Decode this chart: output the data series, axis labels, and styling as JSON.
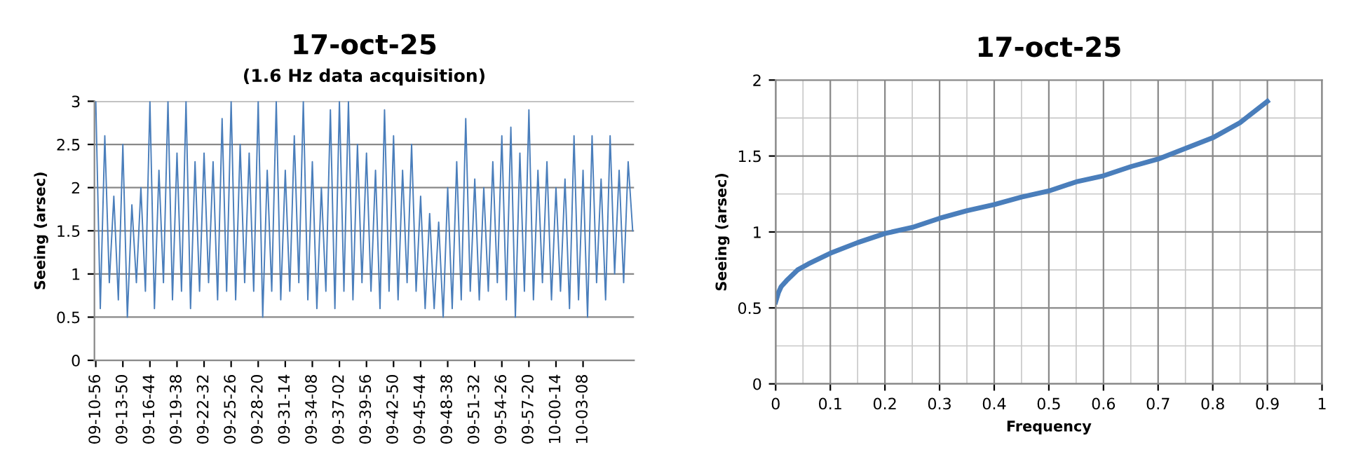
{
  "chart_data": [
    {
      "type": "line",
      "title": "17-oct-25",
      "subtitle": "(1.6 Hz data acquisition)",
      "ylabel": "Seeing (arsec)",
      "color": "#4a7ebb",
      "categories": [
        "09-10-56",
        null,
        null,
        null,
        null,
        null,
        "09-13-50",
        null,
        null,
        null,
        null,
        null,
        "09-16-44",
        null,
        null,
        null,
        null,
        null,
        "09-19-38",
        null,
        null,
        null,
        null,
        null,
        "09-22-32",
        null,
        null,
        null,
        null,
        null,
        "09-25-26",
        null,
        null,
        null,
        null,
        null,
        "09-28-20",
        null,
        null,
        null,
        null,
        null,
        "09-31-14",
        null,
        null,
        null,
        null,
        null,
        "09-34-08",
        null,
        null,
        null,
        null,
        null,
        "09-37-02",
        null,
        null,
        null,
        null,
        null,
        "09-39-56",
        null,
        null,
        null,
        null,
        null,
        "09-42-50",
        null,
        null,
        null,
        null,
        null,
        "09-45-44",
        null,
        null,
        null,
        null,
        null,
        "09-48-38",
        null,
        null,
        null,
        null,
        null,
        "09-51-32",
        null,
        null,
        null,
        null,
        null,
        "09-54-26",
        null,
        null,
        null,
        null,
        null,
        "09-57-20",
        null,
        null,
        null,
        null,
        null,
        "10-00-14",
        null,
        null,
        null,
        null,
        null,
        "10-03-08",
        null,
        null,
        null,
        null,
        null,
        null,
        null,
        null,
        null,
        null,
        null
      ],
      "values": [
        3.0,
        0.6,
        2.6,
        0.9,
        1.9,
        0.7,
        2.5,
        0.5,
        1.8,
        0.9,
        2.0,
        0.8,
        3.0,
        0.6,
        2.2,
        0.9,
        3.0,
        0.7,
        2.4,
        0.8,
        3.0,
        0.6,
        2.3,
        0.8,
        2.4,
        0.9,
        2.3,
        0.7,
        2.8,
        0.8,
        3.0,
        0.7,
        2.5,
        0.9,
        2.4,
        0.8,
        3.0,
        0.5,
        2.2,
        0.8,
        3.0,
        0.7,
        2.2,
        0.8,
        2.6,
        0.9,
        3.0,
        0.7,
        2.3,
        0.6,
        2.0,
        0.8,
        2.9,
        0.6,
        3.0,
        0.8,
        3.0,
        0.7,
        2.5,
        0.9,
        2.4,
        0.8,
        2.2,
        0.6,
        2.9,
        0.8,
        2.6,
        0.7,
        2.2,
        0.9,
        2.5,
        0.8,
        1.9,
        0.6,
        1.7,
        0.6,
        1.6,
        0.5,
        2.0,
        0.6,
        2.3,
        0.7,
        2.8,
        0.8,
        2.1,
        0.7,
        2.0,
        0.8,
        2.3,
        0.9,
        2.6,
        0.7,
        2.7,
        0.5,
        2.4,
        0.8,
        2.9,
        0.7,
        2.2,
        0.9,
        2.3,
        0.7,
        2.0,
        0.8,
        2.1,
        0.6,
        2.6,
        0.7,
        2.2,
        0.5,
        2.6,
        0.9,
        2.1,
        0.7,
        2.6,
        1.0,
        2.2,
        0.9,
        2.3,
        1.5
      ],
      "ylim": [
        0,
        3
      ],
      "yticks": [
        0,
        0.5,
        1,
        1.5,
        2,
        2.5,
        3
      ],
      "grid": "y",
      "line_style": "solid",
      "marker": "none"
    },
    {
      "type": "line",
      "title": "17-oct-25",
      "xlabel": "Frequency",
      "ylabel": "Seeing (arsec)",
      "color": "#4a7ebb",
      "x": [
        0,
        0.005,
        0.01,
        0.02,
        0.04,
        0.06,
        0.1,
        0.15,
        0.2,
        0.25,
        0.3,
        0.35,
        0.4,
        0.45,
        0.5,
        0.55,
        0.6,
        0.65,
        0.7,
        0.75,
        0.8,
        0.85,
        0.9
      ],
      "values": [
        0.54,
        0.6,
        0.64,
        0.68,
        0.75,
        0.79,
        0.86,
        0.93,
        0.99,
        1.03,
        1.09,
        1.14,
        1.18,
        1.23,
        1.27,
        1.33,
        1.37,
        1.43,
        1.48,
        1.55,
        1.62,
        1.72,
        1.86
      ],
      "xlim": [
        0,
        1
      ],
      "xticks": [
        0,
        0.1,
        0.2,
        0.3,
        0.4,
        0.5,
        0.6,
        0.7,
        0.8,
        0.9,
        1
      ],
      "ylim": [
        0,
        2
      ],
      "yticks": [
        0,
        0.5,
        1,
        1.5,
        2
      ],
      "grid": true,
      "line_style": "solid",
      "marker": "none"
    }
  ]
}
